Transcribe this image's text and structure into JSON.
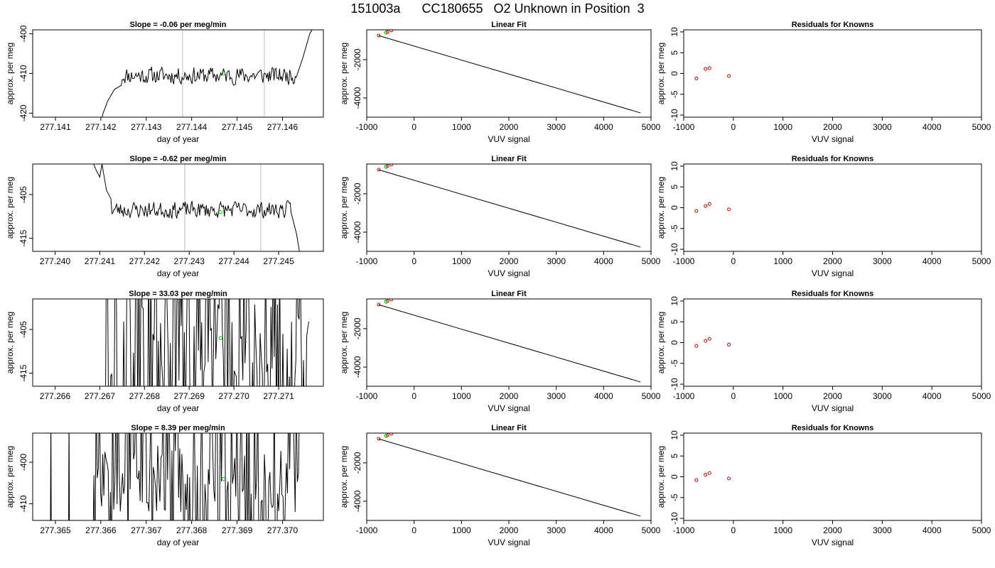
{
  "figure_title": "151003a      CC180655   O2 Unknown in Position  3",
  "colors": {
    "line": "#000000",
    "known_points": "#cc0000",
    "unknown_point": "#00cc00",
    "vlines": "#bebebe"
  },
  "chart_data": [
    {
      "type": "line",
      "row": 0,
      "col": 0,
      "title": "Slope =  -0.06  per meg/min",
      "xlabel": "day of year",
      "ylabel": "approx. per meg",
      "xlim": [
        277.1405,
        277.1469
      ],
      "ylim": [
        -421,
        -399
      ],
      "xticks": [
        277.141,
        277.142,
        277.143,
        277.144,
        277.145,
        277.146
      ],
      "xtick_labels": [
        "277.141",
        "277.142",
        "277.143",
        "277.144",
        "277.145",
        "277.146"
      ],
      "yticks": [
        -420,
        -410,
        -400
      ],
      "ytick_labels": [
        "-420",
        "-410",
        "-400"
      ],
      "vlines": [
        277.1438,
        277.1456
      ],
      "marker": {
        "x": 277.1447,
        "y": -410
      },
      "trace": {
        "x_start": 277.142,
        "x_end": 277.1467,
        "base": -410.5,
        "noise": 2.5,
        "seed": 11,
        "mode": "smooth",
        "start_points": [
          [
            277.142,
            -422
          ],
          [
            277.14205,
            -420
          ],
          [
            277.14215,
            -417
          ],
          [
            277.1423,
            -414
          ],
          [
            277.14245,
            -413
          ]
        ],
        "end_points": [
          [
            277.1463,
            -411
          ],
          [
            277.14645,
            -406
          ],
          [
            277.1466,
            -400
          ],
          [
            277.1467,
            -398
          ]
        ]
      }
    },
    {
      "type": "scatter",
      "row": 0,
      "col": 1,
      "title": "Linear Fit",
      "xlabel": "VUV signal",
      "ylabel": "approx. per meg",
      "xlim": [
        -1000,
        5000
      ],
      "ylim": [
        -5000,
        -450
      ],
      "xticks": [
        -1000,
        0,
        1000,
        2000,
        3000,
        4000,
        5000
      ],
      "xtick_labels": [
        "-1000",
        "0",
        "1000",
        "2000",
        "3000",
        "4000",
        "5000"
      ],
      "yticks": [
        -4000,
        -2000
      ],
      "ytick_labels": [
        "-4000",
        "-2000"
      ],
      "fit_line": [
        [
          -750,
          -750
        ],
        [
          4780,
          -4780
        ]
      ],
      "knowns": [
        [
          -745,
          -745
        ],
        [
          -560,
          -560
        ],
        [
          -480,
          -480
        ],
        [
          -90,
          -90
        ]
      ],
      "unknown": [
        [
          -590,
          -590
        ]
      ]
    },
    {
      "type": "scatter",
      "row": 0,
      "col": 2,
      "title": "Residuals for Knowns",
      "xlabel": "VUV signal",
      "ylabel": "approx. per meg",
      "xlim": [
        -1000,
        5000
      ],
      "ylim": [
        -10.5,
        10.5
      ],
      "xticks": [
        -1000,
        0,
        1000,
        2000,
        3000,
        4000,
        5000
      ],
      "xtick_labels": [
        "-1000",
        "0",
        "1000",
        "2000",
        "3000",
        "4000",
        "5000"
      ],
      "yticks": [
        -10,
        -5,
        0,
        5,
        10
      ],
      "ytick_labels": [
        "-10",
        "-5",
        "0",
        "5",
        "10"
      ],
      "knowns": [
        [
          -745,
          -1.2
        ],
        [
          -560,
          1.1
        ],
        [
          -480,
          1.3
        ],
        [
          -90,
          -0.6
        ]
      ]
    },
    {
      "type": "line",
      "row": 1,
      "col": 0,
      "title": "Slope =  -0.62  per meg/min",
      "xlabel": "day of year",
      "ylabel": "approx. per meg",
      "xlim": [
        277.2395,
        277.246
      ],
      "ylim": [
        -418,
        -398
      ],
      "xticks": [
        277.24,
        277.241,
        277.242,
        277.243,
        277.244,
        277.245
      ],
      "xtick_labels": [
        "277.240",
        "277.241",
        "277.242",
        "277.243",
        "277.244",
        "277.245"
      ],
      "yticks": [
        -415,
        -405
      ],
      "ytick_labels": [
        "-415",
        "-405"
      ],
      "vlines": [
        277.2429,
        277.2446
      ],
      "marker": {
        "x": 277.2437,
        "y": -409
      },
      "trace": {
        "x_start": 277.2408,
        "x_end": 277.2455,
        "base": -408.5,
        "noise": 2.2,
        "seed": 23,
        "mode": "smooth",
        "start_points": [
          [
            277.2408,
            -396
          ],
          [
            277.2409,
            -399
          ],
          [
            277.241,
            -401
          ],
          [
            277.24105,
            -398
          ],
          [
            277.24115,
            -404
          ],
          [
            277.24125,
            -406
          ]
        ],
        "end_points": [
          [
            277.2453,
            -410
          ],
          [
            277.2454,
            -414
          ],
          [
            277.24548,
            -419
          ]
        ]
      }
    },
    {
      "type": "scatter",
      "row": 1,
      "col": 1,
      "title": "Linear Fit",
      "xlabel": "VUV signal",
      "ylabel": "approx. per meg",
      "xlim": [
        -1000,
        5000
      ],
      "ylim": [
        -5000,
        -450
      ],
      "xticks": [
        -1000,
        0,
        1000,
        2000,
        3000,
        4000,
        5000
      ],
      "xtick_labels": [
        "-1000",
        "0",
        "1000",
        "2000",
        "3000",
        "4000",
        "5000"
      ],
      "yticks": [
        -4000,
        -2000
      ],
      "ytick_labels": [
        "-4000",
        "-2000"
      ],
      "fit_line": [
        [
          -750,
          -750
        ],
        [
          4780,
          -4780
        ]
      ],
      "knowns": [
        [
          -745,
          -745
        ],
        [
          -560,
          -560
        ],
        [
          -480,
          -480
        ],
        [
          -90,
          -90
        ]
      ],
      "unknown": [
        [
          -590,
          -590
        ]
      ]
    },
    {
      "type": "scatter",
      "row": 1,
      "col": 2,
      "title": "Residuals for Knowns",
      "xlabel": "VUV signal",
      "ylabel": "approx. per meg",
      "xlim": [
        -1000,
        5000
      ],
      "ylim": [
        -10.5,
        10.5
      ],
      "xticks": [
        -1000,
        0,
        1000,
        2000,
        3000,
        4000,
        5000
      ],
      "xtick_labels": [
        "-1000",
        "0",
        "1000",
        "2000",
        "3000",
        "4000",
        "5000"
      ],
      "yticks": [
        -10,
        -5,
        0,
        5,
        10
      ],
      "ytick_labels": [
        "-10",
        "-5",
        "0",
        "5",
        "10"
      ],
      "knowns": [
        [
          -745,
          -0.8
        ],
        [
          -560,
          0.4
        ],
        [
          -480,
          0.9
        ],
        [
          -90,
          -0.4
        ]
      ]
    },
    {
      "type": "line",
      "row": 2,
      "col": 0,
      "title": "Slope =  33.03  per meg/min",
      "xlabel": "day of year",
      "ylabel": "approx. per meg",
      "xlim": [
        277.2655,
        277.272
      ],
      "ylim": [
        -418,
        -398
      ],
      "xticks": [
        277.266,
        277.267,
        277.268,
        277.269,
        277.27,
        277.271
      ],
      "xtick_labels": [
        "277.266",
        "277.267",
        "277.268",
        "277.269",
        "277.270",
        "277.271"
      ],
      "yticks": [
        -415,
        -405
      ],
      "ytick_labels": [
        "-415",
        "-405"
      ],
      "vlines": [],
      "marker": {
        "x": 277.2697,
        "y": -407
      },
      "trace": {
        "x_start": 277.2671,
        "x_end": 277.2717,
        "base": -408,
        "noise": 9,
        "seed": 37,
        "mode": "spiky",
        "spike_prob": 0.55
      }
    },
    {
      "type": "scatter",
      "row": 2,
      "col": 1,
      "title": "Linear Fit",
      "xlabel": "VUV signal",
      "ylabel": "approx. per meg",
      "xlim": [
        -1000,
        5000
      ],
      "ylim": [
        -5000,
        -450
      ],
      "xticks": [
        -1000,
        0,
        1000,
        2000,
        3000,
        4000,
        5000
      ],
      "xtick_labels": [
        "-1000",
        "0",
        "1000",
        "2000",
        "3000",
        "4000",
        "5000"
      ],
      "yticks": [
        -4000,
        -2000
      ],
      "ytick_labels": [
        "-4000",
        "-2000"
      ],
      "fit_line": [
        [
          -750,
          -750
        ],
        [
          4780,
          -4780
        ]
      ],
      "knowns": [
        [
          -745,
          -745
        ],
        [
          -560,
          -560
        ],
        [
          -480,
          -480
        ],
        [
          -90,
          -90
        ]
      ],
      "unknown": [
        [
          -590,
          -590
        ]
      ]
    },
    {
      "type": "scatter",
      "row": 2,
      "col": 2,
      "title": "Residuals for Knowns",
      "xlabel": "VUV signal",
      "ylabel": "approx. per meg",
      "xlim": [
        -1000,
        5000
      ],
      "ylim": [
        -10.5,
        10.5
      ],
      "xticks": [
        -1000,
        0,
        1000,
        2000,
        3000,
        4000,
        5000
      ],
      "xtick_labels": [
        "-1000",
        "0",
        "1000",
        "2000",
        "3000",
        "4000",
        "5000"
      ],
      "yticks": [
        -10,
        -5,
        0,
        5,
        10
      ],
      "ytick_labels": [
        "-10",
        "-5",
        "0",
        "5",
        "10"
      ],
      "knowns": [
        [
          -745,
          -0.8
        ],
        [
          -560,
          0.4
        ],
        [
          -480,
          0.9
        ],
        [
          -90,
          -0.5
        ]
      ]
    },
    {
      "type": "line",
      "row": 3,
      "col": 0,
      "title": "Slope =  8.39  per meg/min",
      "xlabel": "day of year",
      "ylabel": "approx. per meg",
      "xlim": [
        277.3645,
        277.3709
      ],
      "ylim": [
        -414,
        -393
      ],
      "xticks": [
        277.365,
        277.366,
        277.367,
        277.368,
        277.369,
        277.37
      ],
      "xtick_labels": [
        "277.365",
        "277.366",
        "277.367",
        "277.368",
        "277.369",
        "277.370"
      ],
      "yticks": [
        -410,
        -400
      ],
      "ytick_labels": [
        "-410",
        "-400"
      ],
      "vlines": [],
      "marker": {
        "x": 277.3687,
        "y": -404
      },
      "trace": {
        "x_start": 277.3658,
        "x_end": 277.3704,
        "base": -404,
        "noise": 8,
        "seed": 51,
        "mode": "spiky",
        "spike_prob": 0.45,
        "early_spikes": [
          277.3649,
          277.3653
        ]
      }
    },
    {
      "type": "scatter",
      "row": 3,
      "col": 1,
      "title": "Linear Fit",
      "xlabel": "VUV signal",
      "ylabel": "approx. per meg",
      "xlim": [
        -1000,
        5000
      ],
      "ylim": [
        -5000,
        -450
      ],
      "xticks": [
        -1000,
        0,
        1000,
        2000,
        3000,
        4000,
        5000
      ],
      "xtick_labels": [
        "-1000",
        "0",
        "1000",
        "2000",
        "3000",
        "4000",
        "5000"
      ],
      "yticks": [
        -4000,
        -2000
      ],
      "ytick_labels": [
        "-4000",
        "-2000"
      ],
      "fit_line": [
        [
          -750,
          -750
        ],
        [
          4780,
          -4780
        ]
      ],
      "knowns": [
        [
          -745,
          -745
        ],
        [
          -560,
          -560
        ],
        [
          -480,
          -480
        ],
        [
          -90,
          -90
        ]
      ],
      "unknown": [
        [
          -590,
          -590
        ]
      ]
    },
    {
      "type": "scatter",
      "row": 3,
      "col": 2,
      "title": "Residuals for Knowns",
      "xlabel": "VUV signal",
      "ylabel": "approx. per meg",
      "xlim": [
        -1000,
        5000
      ],
      "ylim": [
        -10.5,
        10.5
      ],
      "xticks": [
        -1000,
        0,
        1000,
        2000,
        3000,
        4000,
        5000
      ],
      "xtick_labels": [
        "-1000",
        "0",
        "1000",
        "2000",
        "3000",
        "4000",
        "5000"
      ],
      "yticks": [
        -10,
        -5,
        0,
        5,
        10
      ],
      "ytick_labels": [
        "-10",
        "-5",
        "0",
        "5",
        "10"
      ],
      "knowns": [
        [
          -745,
          -0.8
        ],
        [
          -560,
          0.5
        ],
        [
          -480,
          0.9
        ],
        [
          -90,
          -0.4
        ]
      ]
    }
  ]
}
